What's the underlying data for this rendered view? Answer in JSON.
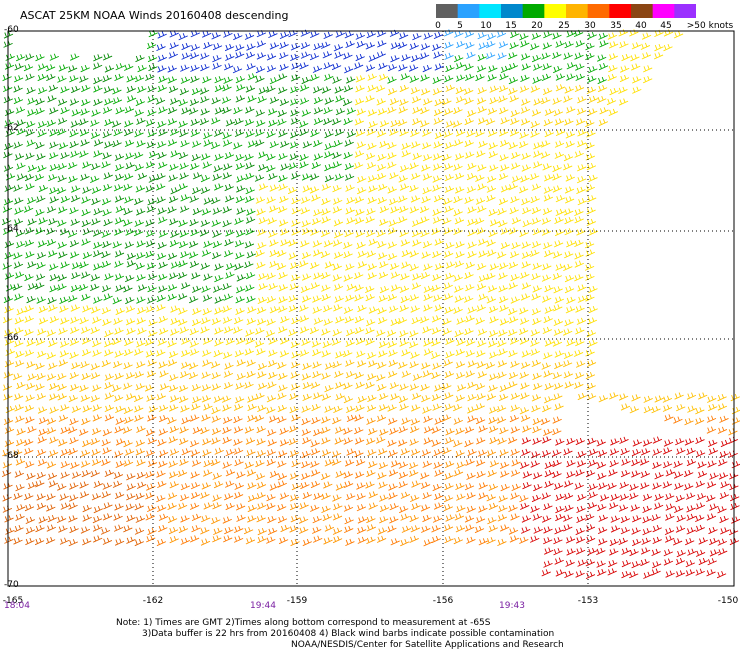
{
  "title": "ASCAT 25KM NOAA Winds 20160408 descending",
  "colorbar": {
    "labels": [
      "0",
      "5",
      "10",
      "15",
      "20",
      "25",
      "30",
      "35",
      "40",
      "45",
      ">50 knots"
    ],
    "colors": [
      "#606060",
      "#2aa2ff",
      "#00e5ff",
      "#0088cc",
      "#00aa00",
      "#ffff00",
      "#ffb400",
      "#ff6a00",
      "#ff0000",
      "#8b4513",
      "#ff00ff",
      "#9b30ff"
    ]
  },
  "lat_labels": [
    "-60",
    "-62",
    "-64",
    "-66",
    "-68",
    "-70"
  ],
  "lon_labels": [
    "-165",
    "-162",
    "-159",
    "-156",
    "-153",
    "-150"
  ],
  "time_labels": {
    "t1": "18:04",
    "t2": "19:44",
    "t3": "19:43"
  },
  "notes": {
    "line1": "Note: 1) Times are GMT 2)Times along bottom correspond to measurement at -65S",
    "line2": "3)Data buffer is 22 hrs from 20160408 4) Black wind barbs indicate possible contamination",
    "line3": "NOAA/NESDIS/Center for Satellite Applications and Research"
  }
}
